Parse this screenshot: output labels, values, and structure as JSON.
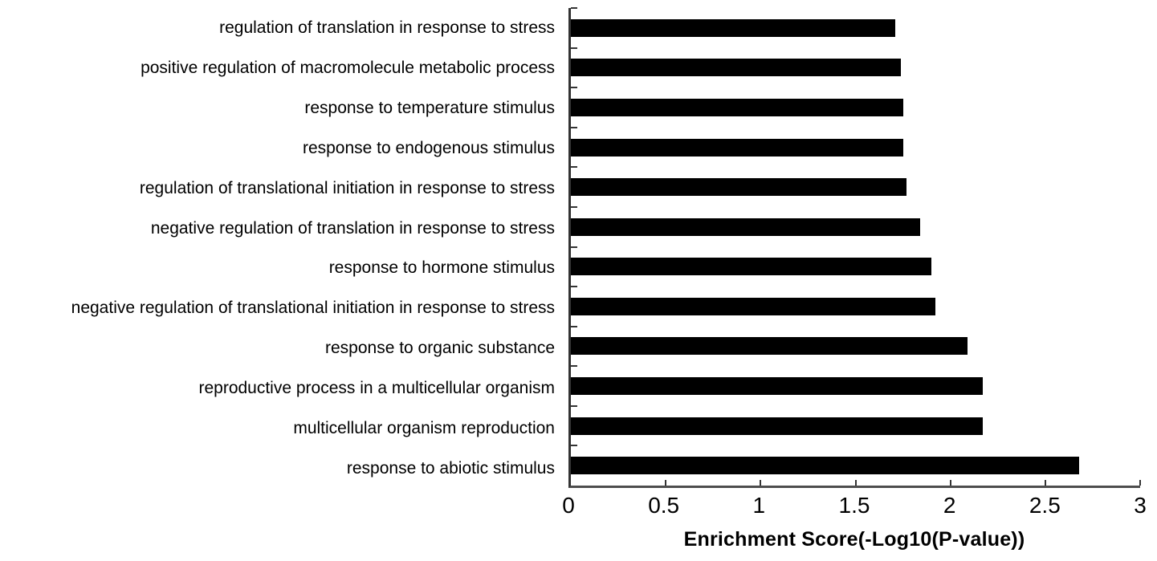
{
  "chart_data": {
    "type": "bar",
    "orientation": "horizontal",
    "title": "",
    "xlabel": "Enrichment Score(-Log10(P-value))",
    "ylabel": "",
    "xlim": [
      0,
      3
    ],
    "xticks": [
      0,
      0.5,
      1,
      1.5,
      2,
      2.5,
      3
    ],
    "xtick_labels": [
      "0",
      "0.5",
      "1",
      "1.5",
      "2",
      "2.5",
      "3"
    ],
    "categories": [
      "regulation of translation in response to stress",
      "positive regulation of macromolecule metabolic process",
      "response to temperature stimulus",
      "response to endogenous stimulus",
      "regulation of translational initiation in response to stress",
      "negative regulation of translation in response to stress",
      "response to hormone stimulus",
      "negative regulation of translational initiation in response to stress",
      "response to organic substance",
      "reproductive process in a multicellular organism",
      "multicellular organism reproduction",
      "response to abiotic stimulus"
    ],
    "values": [
      1.71,
      1.74,
      1.75,
      1.75,
      1.77,
      1.84,
      1.9,
      1.92,
      2.09,
      2.17,
      2.17,
      2.68
    ],
    "bar_color": "#000000",
    "axis_color": "#4d4d4d",
    "grid": false,
    "legend_position": "none"
  }
}
